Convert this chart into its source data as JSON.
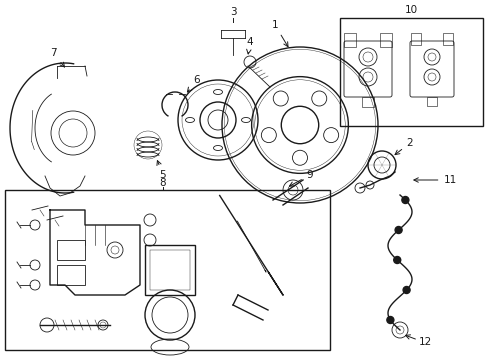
{
  "background_color": "#ffffff",
  "line_color": "#1a1a1a",
  "fig_width": 4.89,
  "fig_height": 3.6,
  "dpi": 100,
  "label_fontsize": 7.5,
  "lw_main": 1.0,
  "lw_thin": 0.6,
  "lw_thick": 1.3
}
